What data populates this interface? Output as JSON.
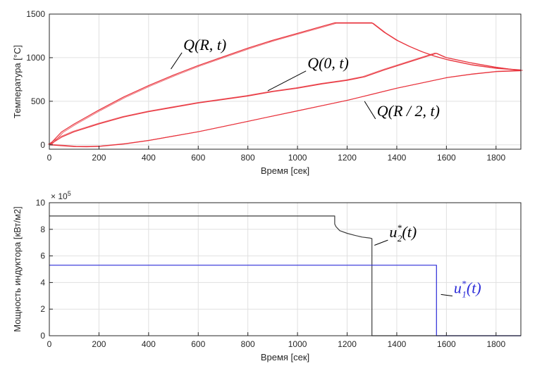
{
  "chart_data": [
    {
      "type": "line",
      "title": "",
      "xlabel": "Время [сек]",
      "ylabel": "Температура [°C]",
      "xlim": [
        0,
        1900
      ],
      "ylim": [
        -50,
        1500
      ],
      "xticks": [
        0,
        200,
        400,
        600,
        800,
        1000,
        1200,
        1400,
        1600,
        1800
      ],
      "yticks": [
        0,
        500,
        1000,
        1500
      ],
      "grid": true,
      "series_color": "#e8333c",
      "series": [
        {
          "x": [
            0,
            50,
            100,
            200,
            300,
            400,
            500,
            600,
            700,
            800,
            900,
            1000,
            1100,
            1150,
            1200,
            1250,
            1300,
            1350,
            1400,
            1450,
            1500,
            1550,
            1600,
            1700,
            1800,
            1900
          ],
          "y": [
            0,
            150,
            240,
            400,
            550,
            680,
            800,
            910,
            1010,
            1110,
            1200,
            1280,
            1360,
            1400,
            1400,
            1400,
            1400,
            1290,
            1200,
            1130,
            1070,
            1020,
            980,
            920,
            880,
            860
          ],
          "offset": [
            6,
            -6
          ]
        },
        {
          "x": [
            0,
            50,
            100,
            200,
            300,
            400,
            500,
            600,
            700,
            800,
            900,
            1000,
            1100,
            1200,
            1270,
            1350,
            1450,
            1560,
            1600,
            1700,
            1800,
            1900
          ],
          "y": [
            0,
            90,
            150,
            240,
            320,
            380,
            430,
            480,
            520,
            560,
            610,
            650,
            700,
            740,
            780,
            860,
            950,
            1050,
            1000,
            940,
            890,
            850
          ],
          "offset": [
            -6,
            4
          ]
        },
        {
          "x": [
            0,
            50,
            100,
            150,
            200,
            300,
            400,
            500,
            600,
            700,
            800,
            900,
            1000,
            1100,
            1200,
            1300,
            1400,
            1500,
            1600,
            1700,
            1800,
            1900
          ],
          "y": [
            0,
            -10,
            -20,
            -22,
            -18,
            10,
            50,
            100,
            150,
            210,
            270,
            330,
            390,
            450,
            510,
            580,
            650,
            710,
            770,
            810,
            840,
            850
          ],
          "offset": [
            8,
            5
          ]
        }
      ],
      "annotations": [
        {
          "label_main": "Q",
          "label_args": "(R, t)",
          "x": 540,
          "y": 1090,
          "color": "#000000",
          "arrow_to": [
            490,
            870
          ]
        },
        {
          "label_main": "Q",
          "label_args": "(0, t)",
          "x": 1040,
          "y": 880,
          "color": "#000000",
          "arrow_to": [
            880,
            620
          ]
        },
        {
          "label_main": "Q",
          "label_args": "(R / 2, t)",
          "x": 1320,
          "y": 330,
          "color": "#000000",
          "arrow_to": [
            1270,
            500
          ]
        }
      ]
    },
    {
      "type": "line",
      "title": "",
      "xlabel": "Время [сек]",
      "ylabel": "Мощность индуктора [кВт/м2]",
      "xlim": [
        0,
        1900
      ],
      "ylim": [
        0,
        10
      ],
      "xticks": [
        0,
        200,
        400,
        600,
        800,
        1000,
        1200,
        1400,
        1600,
        1800
      ],
      "yticks": [
        0,
        2,
        4,
        6,
        8,
        10
      ],
      "y_exponent": "× 10",
      "y_exponent_power": "5",
      "grid": true,
      "series": [
        {
          "name": "u2",
          "color": "#3d3d3d",
          "x": [
            0,
            1150,
            1150,
            1155,
            1170,
            1200,
            1230,
            1260,
            1290,
            1300,
            1300,
            1900
          ],
          "y": [
            9,
            9,
            8.4,
            8.2,
            7.9,
            7.7,
            7.55,
            7.42,
            7.35,
            7.3,
            0,
            0
          ]
        },
        {
          "name": "u1",
          "color": "#2b2bd8",
          "x": [
            0,
            1560,
            1560,
            1900
          ],
          "y": [
            5.3,
            5.3,
            0,
            0
          ]
        }
      ],
      "annotations": [
        {
          "label_main": "u",
          "sub": "2",
          "sup": "*",
          "label_args": "(t)",
          "x": 1370,
          "y": 7.4,
          "color": "#000000",
          "arrow_to": [
            1310,
            6.8
          ]
        },
        {
          "label_main": "u",
          "sub": "1",
          "sup": "*",
          "label_args": "(t)",
          "x": 1630,
          "y": 3.2,
          "color": "#2b2bd8",
          "arrow_to": [
            1578,
            3.1
          ]
        }
      ]
    }
  ]
}
